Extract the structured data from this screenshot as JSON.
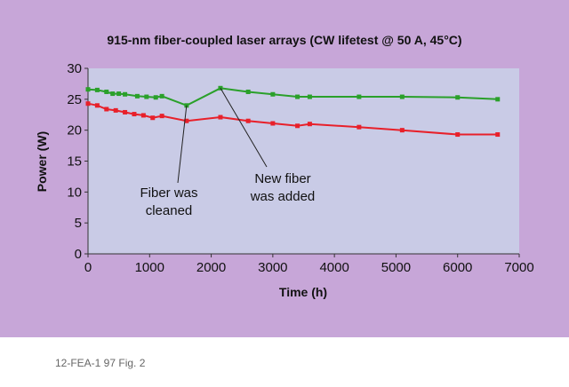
{
  "caption": "12-FEA-1 97 Fig. 2",
  "colors": {
    "panel_background": "#c7a6d8",
    "plot_background": "#c9cbe6",
    "green_series": "#2aa02a",
    "red_series": "#e8202a"
  },
  "chart_data": {
    "type": "line",
    "title": "915-nm fiber-coupled laser arrays (CW lifetest @ 50 A, 45°C)",
    "xlabel": "Time (h)",
    "ylabel": "Power (W)",
    "xlim": [
      0,
      7000
    ],
    "ylim": [
      0,
      30
    ],
    "x_ticks": [
      0,
      1000,
      2000,
      3000,
      4000,
      5000,
      6000,
      7000
    ],
    "y_ticks": [
      0,
      5,
      10,
      15,
      20,
      25,
      30
    ],
    "grid": false,
    "series": [
      {
        "color": "#2aa02a",
        "points": [
          [
            0,
            26.6
          ],
          [
            150,
            26.5
          ],
          [
            300,
            26.2
          ],
          [
            400,
            25.9
          ],
          [
            500,
            25.9
          ],
          [
            600,
            25.8
          ],
          [
            800,
            25.5
          ],
          [
            950,
            25.4
          ],
          [
            1100,
            25.3
          ],
          [
            1200,
            25.5
          ],
          [
            1600,
            24.0
          ],
          [
            2150,
            26.8
          ],
          [
            2600,
            26.2
          ],
          [
            3000,
            25.8
          ],
          [
            3400,
            25.4
          ],
          [
            3600,
            25.4
          ],
          [
            4400,
            25.4
          ],
          [
            5100,
            25.4
          ],
          [
            6000,
            25.3
          ],
          [
            6650,
            25.0
          ]
        ]
      },
      {
        "color": "#e8202a",
        "points": [
          [
            0,
            24.3
          ],
          [
            150,
            24.0
          ],
          [
            300,
            23.4
          ],
          [
            450,
            23.2
          ],
          [
            600,
            22.9
          ],
          [
            750,
            22.6
          ],
          [
            900,
            22.4
          ],
          [
            1050,
            22.0
          ],
          [
            1200,
            22.3
          ],
          [
            1600,
            21.5
          ],
          [
            2150,
            22.1
          ],
          [
            2600,
            21.5
          ],
          [
            3000,
            21.1
          ],
          [
            3400,
            20.7
          ],
          [
            3600,
            21.0
          ],
          [
            4400,
            20.5
          ],
          [
            5100,
            20.0
          ],
          [
            6000,
            19.3
          ],
          [
            6650,
            19.3
          ]
        ]
      }
    ],
    "annotations": [
      {
        "lines": [
          "Fiber was",
          "cleaned"
        ],
        "target": [
          1600,
          24.0
        ]
      },
      {
        "lines": [
          "New fiber",
          "was added"
        ],
        "target": [
          2150,
          26.8
        ]
      }
    ]
  }
}
